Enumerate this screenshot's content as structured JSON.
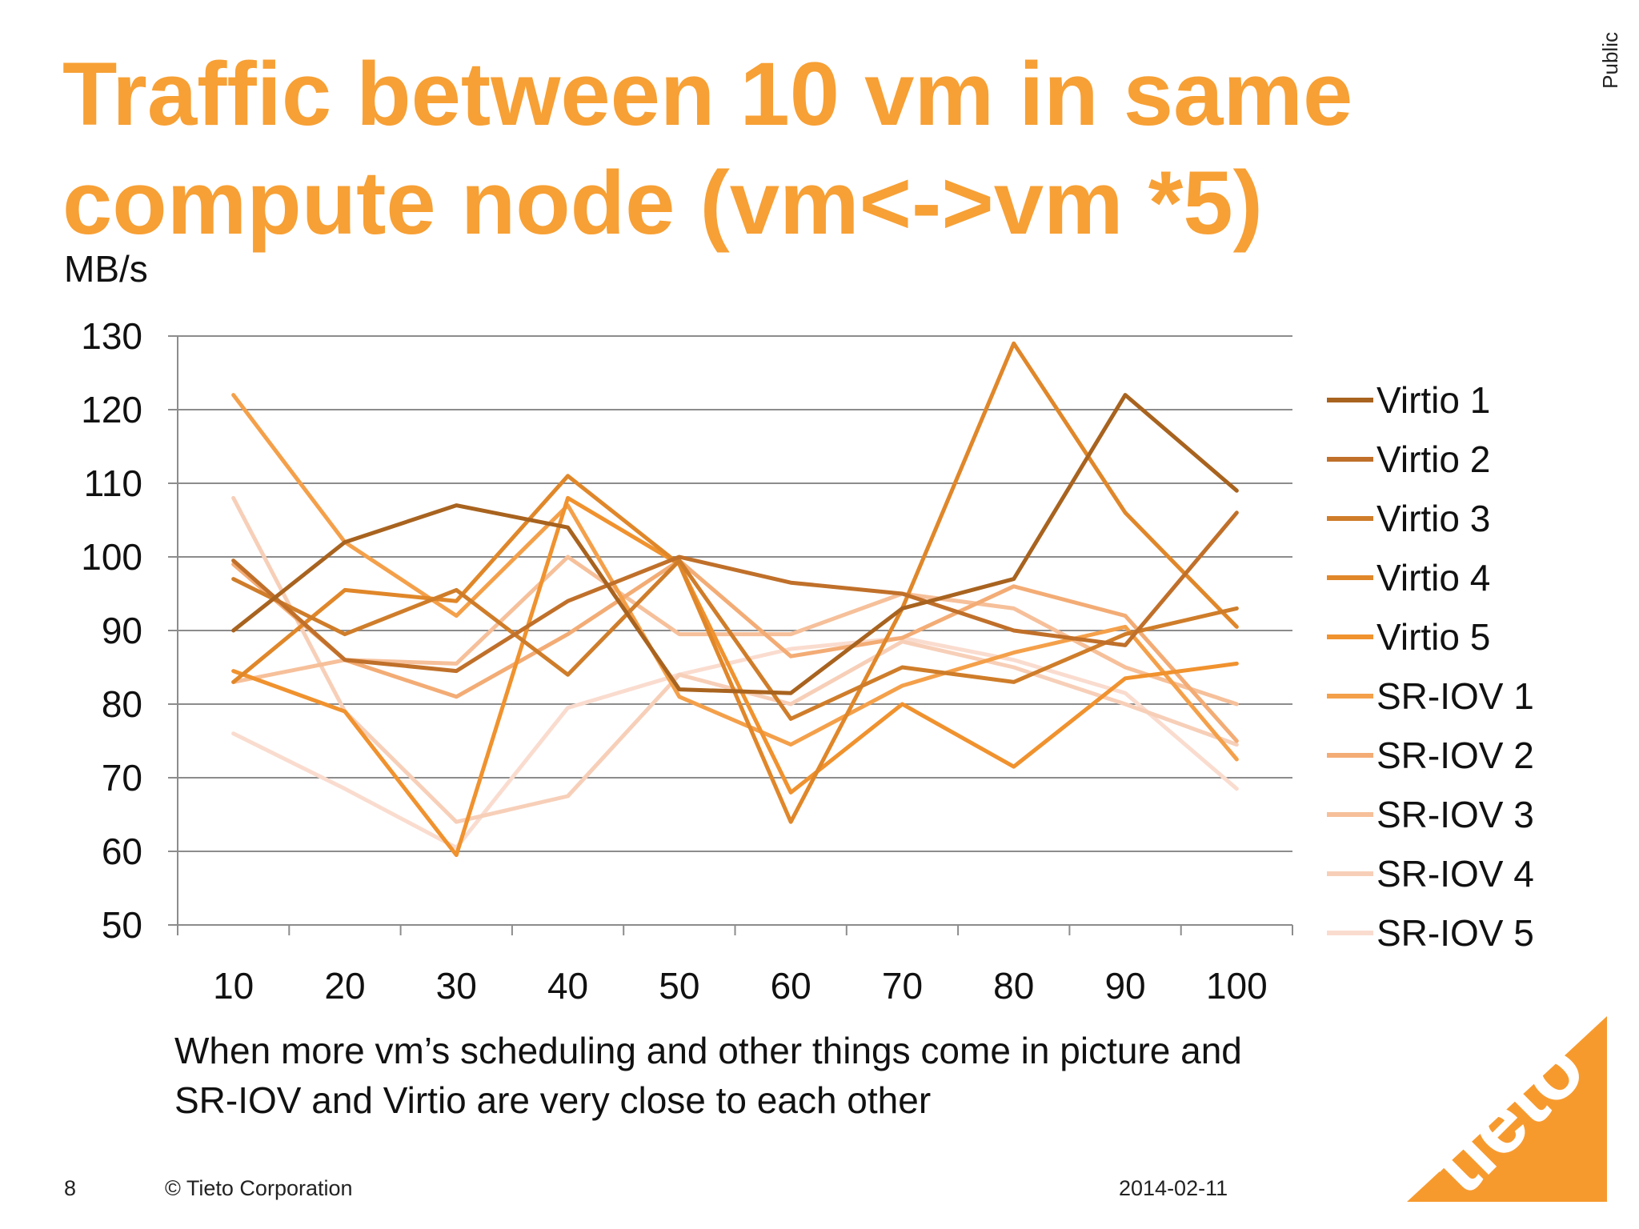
{
  "slide": {
    "title_lines": [
      "Traffic between 10 vm in same",
      "compute node (vm<->vm *5)"
    ],
    "classification": "Public",
    "caption_lines": [
      "When more vm’s scheduling and other things come in picture and",
      "SR-IOV and Virtio are very close to each other"
    ],
    "footer": {
      "page": "8",
      "copyright": "© Tieto Corporation",
      "date": "2014-02-11"
    },
    "logo_text": "tieto",
    "colors": {
      "accent": "#f7a035",
      "logo": "#f79a2e"
    }
  },
  "chart_data": {
    "type": "line",
    "ylabel": "MB/s",
    "x": [
      10,
      20,
      30,
      40,
      50,
      60,
      70,
      80,
      90,
      100
    ],
    "ylim": [
      50,
      130
    ],
    "yticks": [
      50,
      60,
      70,
      80,
      90,
      100,
      110,
      120,
      130
    ],
    "grid": true,
    "legend_position": "right",
    "series": [
      {
        "name": "Virtio 1",
        "color": "#a8631f",
        "values": [
          90,
          102,
          107,
          104,
          82,
          81.5,
          93,
          97,
          122,
          109
        ]
      },
      {
        "name": "Virtio 2",
        "color": "#c0702a",
        "values": [
          99.5,
          86,
          84.5,
          94,
          100,
          96.5,
          95,
          90,
          88,
          106
        ]
      },
      {
        "name": "Virtio 3",
        "color": "#cf7d2a",
        "values": [
          97,
          89.5,
          95.5,
          84,
          99.5,
          78,
          85,
          83,
          89.5,
          93
        ]
      },
      {
        "name": "Virtio 4",
        "color": "#e0872a",
        "values": [
          83,
          95.5,
          94,
          111,
          99,
          64,
          93,
          129,
          106,
          90.5
        ]
      },
      {
        "name": "Virtio 5",
        "color": "#f0922e",
        "values": [
          84.5,
          79,
          59.5,
          108,
          99,
          68,
          80,
          71.5,
          83.5,
          85.5
        ]
      },
      {
        "name": "SR-IOV 1",
        "color": "#f4a04a",
        "values": [
          122,
          102,
          92,
          107,
          81,
          74.5,
          82.5,
          87,
          90.5,
          72.5
        ]
      },
      {
        "name": "SR-IOV 2",
        "color": "#f3ac75",
        "values": [
          99,
          86,
          81,
          89.5,
          99.5,
          86.5,
          89,
          96,
          92,
          75
        ]
      },
      {
        "name": "SR-IOV 3",
        "color": "#f6c09a",
        "values": [
          83,
          86,
          85.5,
          100,
          89.5,
          89.5,
          95,
          93,
          85,
          80
        ]
      },
      {
        "name": "SR-IOV 4",
        "color": "#f7cfb8",
        "values": [
          108,
          79,
          64,
          67.5,
          84,
          80,
          88.5,
          85,
          80,
          74.5
        ]
      },
      {
        "name": "SR-IOV 5",
        "color": "#fadccf",
        "values": [
          76,
          68.5,
          60.5,
          79.5,
          84,
          87.5,
          89,
          86,
          81.5,
          68.5
        ]
      }
    ]
  }
}
